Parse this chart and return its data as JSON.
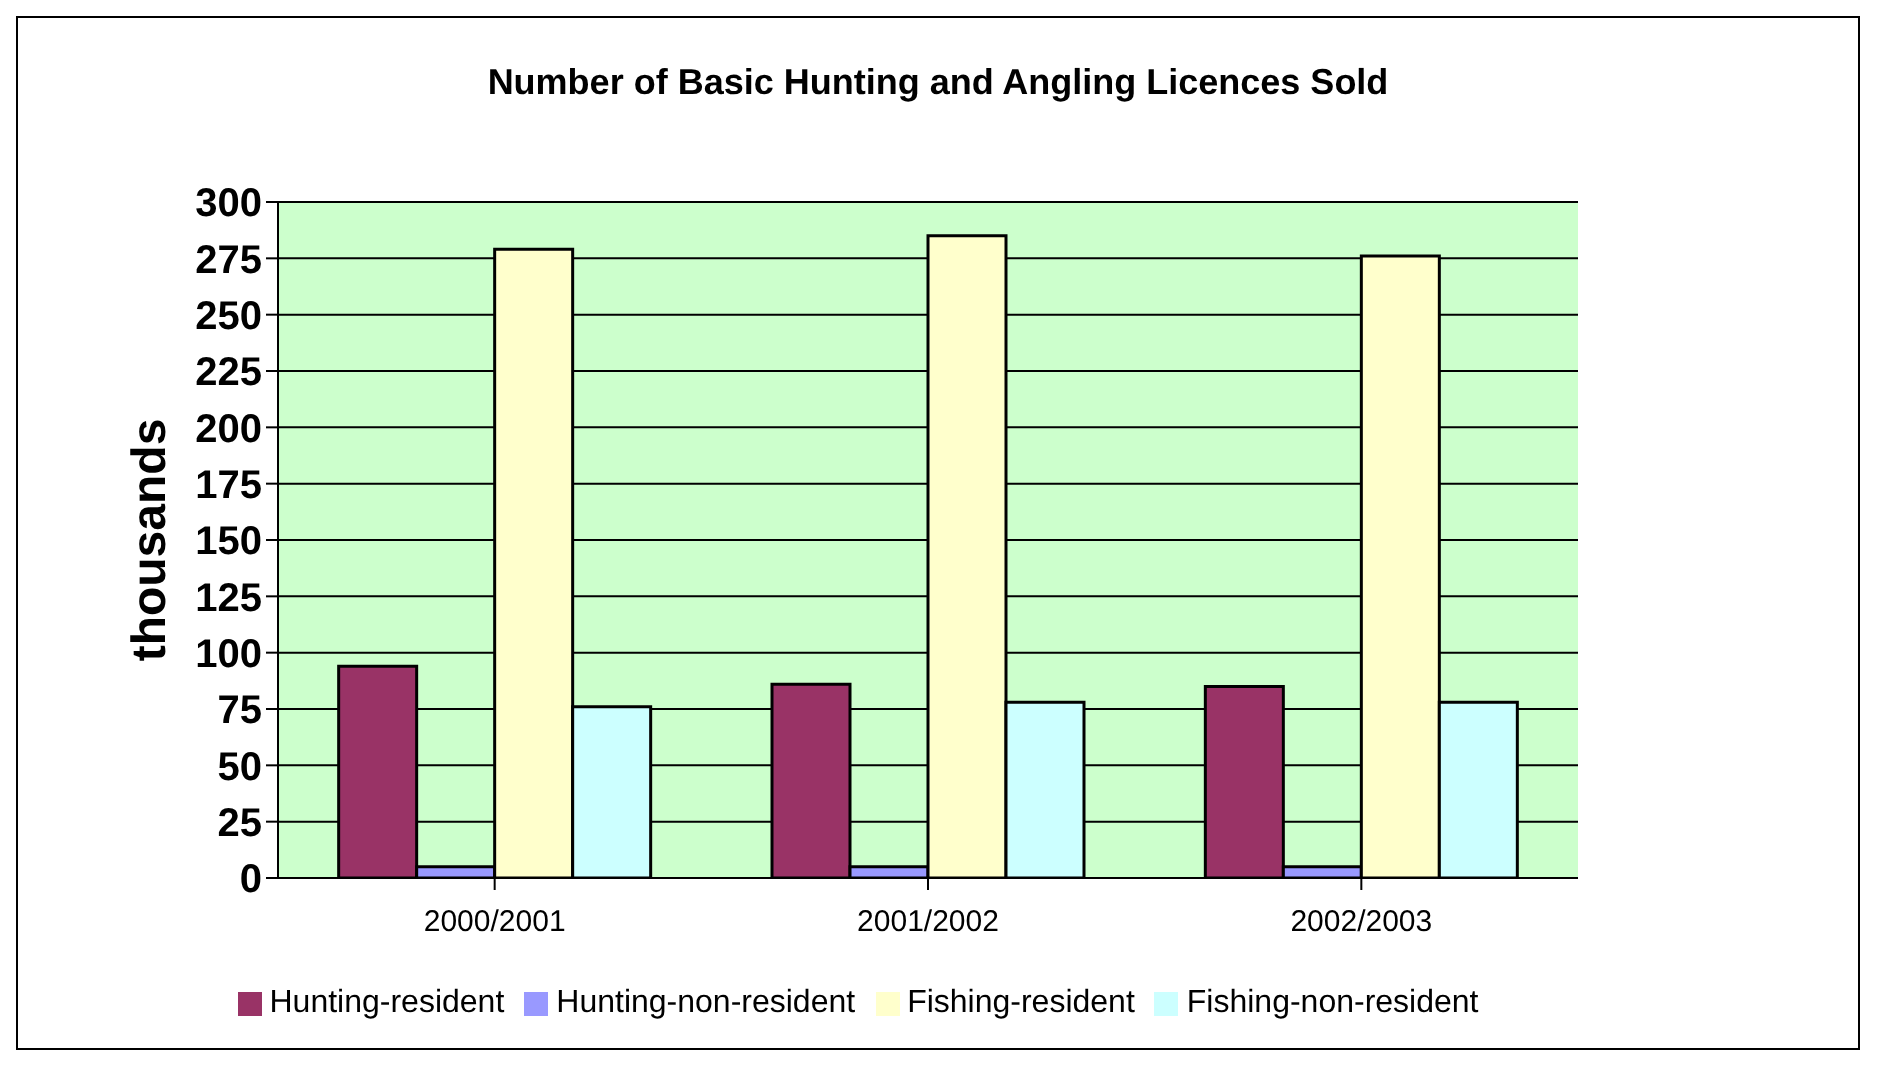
{
  "chart_data": {
    "type": "bar",
    "title": "Number of Basic Hunting and Angling Licences Sold",
    "ylabel": "thousands",
    "categories": [
      "2000/2001",
      "2001/2002",
      "2002/2003"
    ],
    "series": [
      {
        "name": "Hunting-resident",
        "color": "#993366",
        "values": [
          94,
          86,
          85
        ]
      },
      {
        "name": "Hunting-non-resident",
        "color": "#9999ff",
        "values": [
          5,
          5,
          5
        ]
      },
      {
        "name": "Fishing-resident",
        "color": "#ffffcc",
        "values": [
          279,
          285,
          276
        ]
      },
      {
        "name": "Fishing-non-resident",
        "color": "#ccffff",
        "values": [
          76,
          78,
          78
        ]
      }
    ],
    "ylim": [
      0,
      300
    ],
    "yticks": [
      0,
      25,
      50,
      75,
      100,
      125,
      150,
      175,
      200,
      225,
      250,
      275,
      300
    ],
    "grid": "y",
    "legend": "bottom"
  }
}
